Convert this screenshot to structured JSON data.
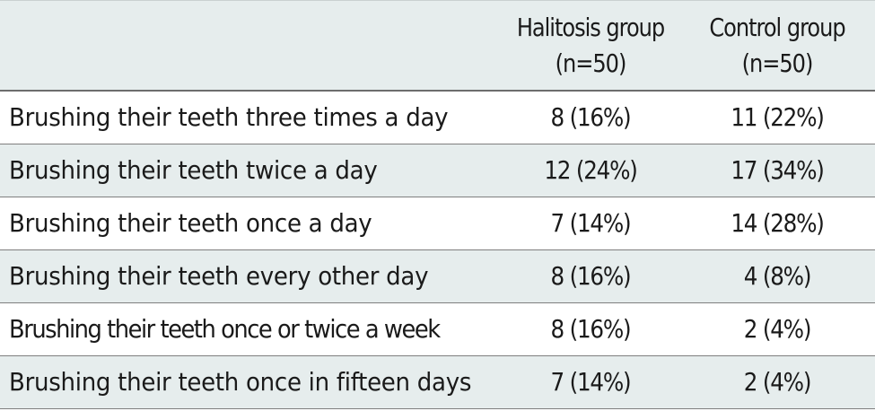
{
  "table": {
    "headers": {
      "label": "",
      "halitosis": [
        "Halitosis group",
        "(n=50)"
      ],
      "control": [
        "Control group",
        "(n=50)"
      ]
    },
    "rows": [
      {
        "label": "Brushing their teeth three times a day",
        "halitosis": "8 (16%)",
        "control": "11 (22%)"
      },
      {
        "label": "Brushing their teeth twice a day",
        "halitosis": "12 (24%)",
        "control": "17 (34%)"
      },
      {
        "label": "Brushing their teeth once a day",
        "halitosis": "7 (14%)",
        "control": "14 (28%)"
      },
      {
        "label": "Brushing their teeth every other day",
        "halitosis": "8 (16%)",
        "control": "4 (8%)"
      },
      {
        "label": "Brushing their teeth once or twice a week",
        "halitosis": "8 (16%)",
        "control": "2 (4%)"
      },
      {
        "label": "Brushing their teeth once in fifteen days",
        "halitosis": "7 (14%)",
        "control": "2 (4%)"
      }
    ]
  },
  "colors": {
    "stripe": "#e6eded",
    "rule": "#7f7f7f",
    "text": "#1a1a1a"
  }
}
